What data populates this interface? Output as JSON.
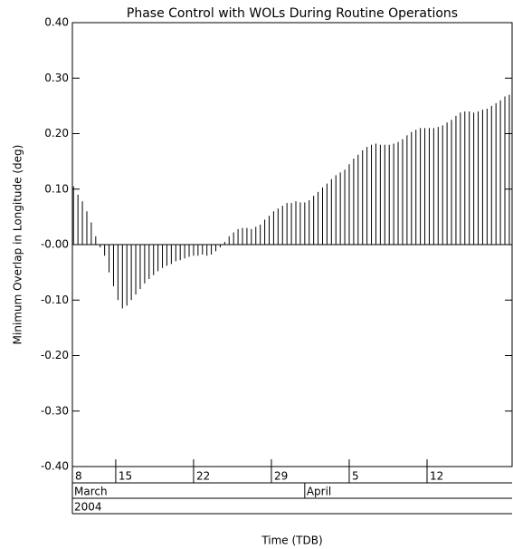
{
  "chart_data": {
    "type": "stem",
    "title": "Phase Control with WOLs During Routine Operations",
    "xlabel": "Time (TDB)",
    "ylabel": "Minimum Overlap in Longitude (deg)",
    "color": "#000000",
    "xlim": [
      11.1,
      50.65
    ],
    "ylim": [
      -0.4,
      0.4
    ],
    "xticks": [
      {
        "value": 11.1,
        "label": "8"
      },
      15,
      22,
      29,
      {
        "value": 36,
        "label": "5"
      },
      {
        "value": 43,
        "label": "12"
      }
    ],
    "month_ticks": [
      {
        "value": 11.1,
        "label": "March"
      },
      {
        "value": 32,
        "label": "April"
      }
    ],
    "year_ticks": [
      {
        "value": 11.1,
        "label": "2004"
      }
    ],
    "yticks": [
      {
        "value": 0.4,
        "label": "0.40"
      },
      {
        "value": 0.3,
        "label": "0.30"
      },
      {
        "value": 0.2,
        "label": "0.20"
      },
      {
        "value": 0.1,
        "label": "0.10"
      },
      {
        "value": 0,
        "label": "-0.00"
      },
      {
        "value": -0.1,
        "label": "-0.10"
      },
      {
        "value": -0.2,
        "label": "-0.20"
      },
      {
        "value": -0.3,
        "label": "-0.30"
      },
      {
        "value": -0.4,
        "label": "-0.40"
      }
    ],
    "x": [
      11.2,
      11.6,
      12.0,
      12.4,
      12.8,
      13.2,
      13.6,
      14.0,
      14.4,
      14.8,
      15.2,
      15.6,
      16.0,
      16.4,
      16.8,
      17.2,
      17.6,
      18.0,
      18.4,
      18.8,
      19.2,
      19.6,
      20.0,
      20.4,
      20.8,
      21.2,
      21.6,
      22.0,
      22.4,
      22.8,
      23.2,
      23.6,
      24.0,
      24.4,
      24.8,
      25.2,
      25.6,
      26.0,
      26.4,
      26.8,
      27.2,
      27.6,
      28.0,
      28.4,
      28.8,
      29.2,
      29.6,
      30.0,
      30.4,
      30.8,
      31.2,
      31.6,
      32.0,
      32.4,
      32.8,
      33.2,
      33.6,
      34.0,
      34.4,
      34.8,
      35.2,
      35.6,
      36.0,
      36.4,
      36.8,
      37.2,
      37.6,
      38.0,
      38.4,
      38.8,
      39.2,
      39.6,
      40.0,
      40.4,
      40.8,
      41.2,
      41.6,
      42.0,
      42.4,
      42.8,
      43.2,
      43.6,
      44.0,
      44.4,
      44.8,
      45.2,
      45.6,
      46.0,
      46.4,
      46.8,
      47.2,
      47.6,
      48.0,
      48.4,
      48.8,
      49.2,
      49.6,
      50.0,
      50.4
    ],
    "values": [
      0.105,
      0.09,
      0.078,
      0.06,
      0.04,
      0.015,
      -0.005,
      -0.02,
      -0.05,
      -0.075,
      -0.1,
      -0.115,
      -0.11,
      -0.1,
      -0.09,
      -0.08,
      -0.07,
      -0.062,
      -0.055,
      -0.048,
      -0.042,
      -0.038,
      -0.035,
      -0.03,
      -0.028,
      -0.025,
      -0.022,
      -0.02,
      -0.02,
      -0.018,
      -0.02,
      -0.018,
      -0.012,
      -0.005,
      0.005,
      0.015,
      0.022,
      0.028,
      0.03,
      0.03,
      0.028,
      0.032,
      0.036,
      0.045,
      0.052,
      0.06,
      0.065,
      0.07,
      0.075,
      0.075,
      0.078,
      0.076,
      0.076,
      0.08,
      0.088,
      0.095,
      0.103,
      0.11,
      0.118,
      0.125,
      0.13,
      0.135,
      0.145,
      0.155,
      0.162,
      0.17,
      0.176,
      0.18,
      0.182,
      0.18,
      0.18,
      0.18,
      0.182,
      0.185,
      0.19,
      0.197,
      0.203,
      0.207,
      0.21,
      0.21,
      0.21,
      0.21,
      0.212,
      0.215,
      0.22,
      0.225,
      0.232,
      0.238,
      0.24,
      0.24,
      0.238,
      0.24,
      0.243,
      0.245,
      0.25,
      0.255,
      0.26,
      0.267,
      0.27
    ]
  }
}
